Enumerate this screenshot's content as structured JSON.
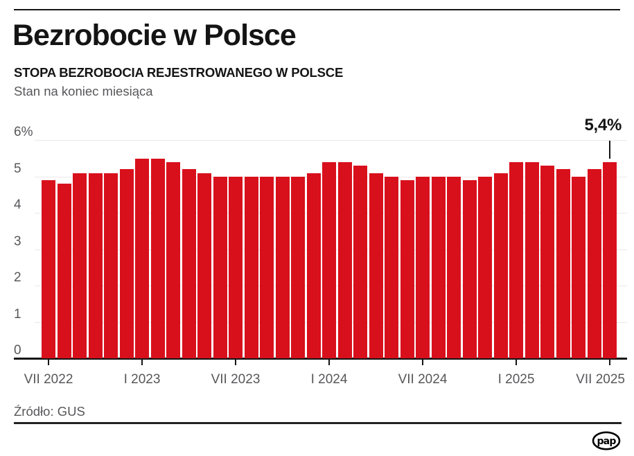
{
  "header": {
    "title": "Bezrobocie w Polsce",
    "subtitle": "STOPA BEZROBOCIA REJESTROWANEGO W POLSCE",
    "dek": "Stan na koniec miesiąca"
  },
  "chart_data": {
    "type": "bar",
    "title": "STOPA BEZROBOCIA REJESTROWANEGO W POLSCE",
    "subtitle": "Stan na koniec miesiąca",
    "unit": "%",
    "xlabel": "",
    "ylabel": "",
    "ylim": [
      0,
      6
    ],
    "grid": true,
    "legend": false,
    "categories": [
      "VII 2022",
      "VIII 2022",
      "IX 2022",
      "X 2022",
      "XI 2022",
      "XII 2022",
      "I 2023",
      "II 2023",
      "III 2023",
      "IV 2023",
      "V 2023",
      "VI 2023",
      "VII 2023",
      "VIII 2023",
      "IX 2023",
      "X 2023",
      "XI 2023",
      "XII 2023",
      "I 2024",
      "II 2024",
      "III 2024",
      "IV 2024",
      "V 2024",
      "VI 2024",
      "VII 2024",
      "VIII 2024",
      "IX 2024",
      "X 2024",
      "XI 2024",
      "XII 2024",
      "I 2025",
      "II 2025",
      "III 2025",
      "IV 2025",
      "V 2025",
      "VI 2025",
      "VII 2025"
    ],
    "values": [
      4.9,
      4.8,
      5.1,
      5.1,
      5.1,
      5.2,
      5.5,
      5.5,
      5.4,
      5.2,
      5.1,
      5.0,
      5.0,
      5.0,
      5.0,
      5.0,
      5.0,
      5.1,
      5.4,
      5.4,
      5.3,
      5.1,
      5.0,
      4.9,
      5.0,
      5.0,
      5.0,
      4.9,
      5.0,
      5.1,
      5.4,
      5.4,
      5.3,
      5.2,
      5.0,
      5.2,
      5.4
    ],
    "yticks": [
      0,
      1,
      2,
      3,
      4,
      5,
      6
    ],
    "ytick_labels": [
      "0",
      "1",
      "2",
      "3",
      "4",
      "5",
      "6%"
    ],
    "xticks": [
      {
        "index": 0,
        "label": "VII 2022"
      },
      {
        "index": 6,
        "label": "I 2023"
      },
      {
        "index": 12,
        "label": "VII 2023"
      },
      {
        "index": 18,
        "label": "I 2024"
      },
      {
        "index": 24,
        "label": "VII 2024"
      },
      {
        "index": 30,
        "label": "I 2025"
      },
      {
        "index": 36,
        "label": "VII 2025"
      }
    ],
    "annotation": {
      "index": 36,
      "label": "5,4%"
    }
  },
  "footer": {
    "source": "Źródło: GUS",
    "logo_text": "pap"
  },
  "colors": {
    "bar": "#d8101c",
    "grid": "#e9e9e9",
    "axis": "#141414",
    "text_primary": "#141414",
    "text_secondary": "#57575a"
  }
}
